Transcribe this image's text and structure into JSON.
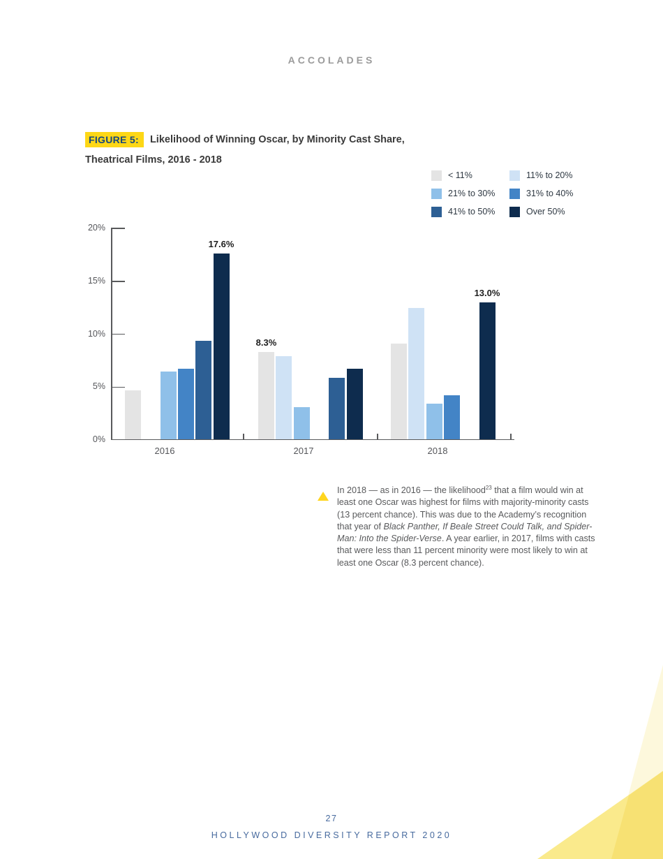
{
  "page": {
    "header": "ACCOLADES",
    "page_number": "27",
    "footer": "HOLLYWOOD DIVERSITY REPORT 2020"
  },
  "figure": {
    "label": "FIGURE 5:",
    "title_line1": "Likelihood of Winning Oscar, by Minority Cast Share,",
    "title_line2": "Theatrical Films, 2016 - 2018"
  },
  "chart_data": {
    "type": "bar",
    "title": "Likelihood of Winning Oscar, by Minority Cast Share, Theatrical Films, 2016 - 2018",
    "categories": [
      "2016",
      "2017",
      "2018"
    ],
    "series": [
      {
        "name": "< 11%",
        "color": "#e4e4e4",
        "values": [
          4.7,
          8.3,
          9.1
        ]
      },
      {
        "name": "11% to 20%",
        "color": "#cfe2f5",
        "values": [
          null,
          7.9,
          12.5
        ]
      },
      {
        "name": "21% to 30%",
        "color": "#8fc0e9",
        "values": [
          6.5,
          3.1,
          3.4
        ]
      },
      {
        "name": "31% to 40%",
        "color": "#4384c6",
        "values": [
          6.7,
          null,
          4.2
        ]
      },
      {
        "name": "41% to 50%",
        "color": "#2d5f94",
        "values": [
          9.4,
          5.9,
          null
        ]
      },
      {
        "name": "Over 50%",
        "color": "#0e2c4e",
        "values": [
          17.6,
          6.7,
          13.0
        ]
      }
    ],
    "callouts": [
      {
        "category": "2016",
        "series": "Over 50%",
        "label": "17.6%"
      },
      {
        "category": "2017",
        "series": "< 11%",
        "label": "8.3%"
      },
      {
        "category": "2018",
        "series": "Over 50%",
        "label": "13.0%"
      }
    ],
    "xlabel": "",
    "ylabel": "",
    "ylim": [
      0,
      20
    ],
    "yticks": [
      {
        "value": 20,
        "label": "20%"
      },
      {
        "value": 15,
        "label": "15%"
      },
      {
        "value": 10,
        "label": "10%"
      },
      {
        "value": 5,
        "label": "5%"
      },
      {
        "value": 0,
        "label": "0%"
      }
    ],
    "grid": false,
    "legend_position": "top-right"
  },
  "annotation": {
    "bullet_color": "#ffd51e",
    "segments": [
      {
        "t": "In 2018  — as in 2016 — the likelihood"
      },
      {
        "t": "23",
        "sup": true
      },
      {
        "t": "  that a film would win at least one Oscar was highest for films with majority-minority casts (13 percent chance).  This was due to the Academy’s recognition that year of "
      },
      {
        "t": "Black Panther, If Beale Street Could Talk, and Spider-Man:  Into the Spider-Verse",
        "i": true
      },
      {
        "t": ".  A year earlier, in 2017, films with casts that were less than 11 percent minority were most likely to win at least one Oscar (8.3 percent chance)."
      }
    ]
  },
  "decor": {
    "pale": "#fdf8dc",
    "mid": "#faea8c",
    "overlap": "#f7e173"
  },
  "colors": {
    "highlight": "#fdd716",
    "figure_label_text": "#16477c",
    "axis": "#58595b"
  }
}
